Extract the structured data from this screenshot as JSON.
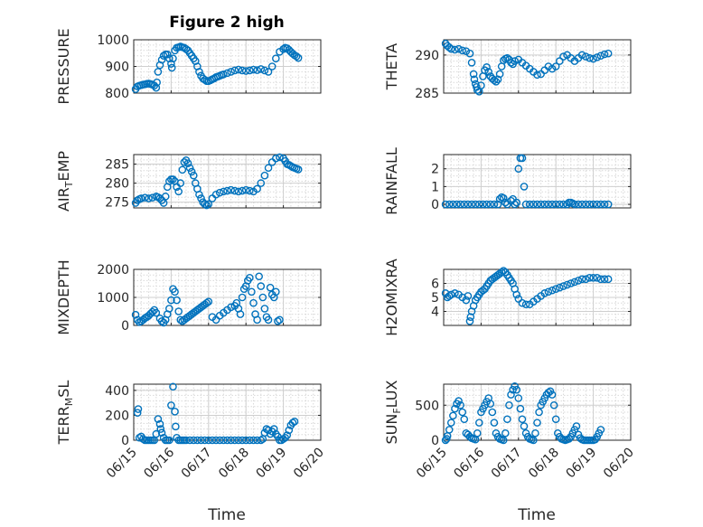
{
  "figure": {
    "title": "Figure 2 high"
  },
  "x_axis": {
    "label": "Time",
    "ticks": [
      "06/15",
      "06/16",
      "06/17",
      "06/18",
      "06/19",
      "06/20"
    ],
    "range": [
      0,
      5
    ]
  },
  "chart_data": [
    {
      "type": "scatter",
      "title": "Figure 2 high",
      "ylabel": "PRESSURE",
      "xlabel": "",
      "ylim": [
        800,
        1000
      ],
      "yticks": [
        800,
        900,
        1000
      ],
      "grid": true,
      "marker": "circle",
      "color": "#0072bd",
      "x": [
        0.05,
        0.1,
        0.15,
        0.2,
        0.25,
        0.3,
        0.35,
        0.4,
        0.45,
        0.5,
        0.55,
        0.6,
        0.62,
        0.65,
        0.7,
        0.75,
        0.8,
        0.85,
        0.9,
        0.95,
        1.0,
        1.02,
        1.05,
        1.1,
        1.15,
        1.2,
        1.25,
        1.3,
        1.35,
        1.4,
        1.45,
        1.5,
        1.55,
        1.6,
        1.65,
        1.7,
        1.75,
        1.8,
        1.85,
        1.9,
        1.95,
        2.0,
        2.05,
        2.1,
        2.15,
        2.2,
        2.25,
        2.3,
        2.35,
        2.4,
        2.5,
        2.6,
        2.7,
        2.8,
        2.9,
        3.0,
        3.1,
        3.2,
        3.3,
        3.4,
        3.5,
        3.6,
        3.7,
        3.8,
        3.9,
        4.0,
        4.05,
        4.1,
        4.15,
        4.2,
        4.25,
        4.3,
        4.35,
        4.4
      ],
      "y": [
        815,
        825,
        828,
        830,
        832,
        833,
        835,
        836,
        834,
        832,
        828,
        820,
        840,
        880,
        905,
        925,
        940,
        945,
        945,
        930,
        910,
        895,
        930,
        960,
        970,
        972,
        975,
        972,
        970,
        965,
        960,
        950,
        940,
        930,
        920,
        900,
        880,
        865,
        855,
        850,
        845,
        845,
        848,
        852,
        855,
        860,
        862,
        865,
        868,
        870,
        875,
        880,
        885,
        888,
        885,
        883,
        885,
        888,
        886,
        890,
        885,
        880,
        900,
        930,
        955,
        965,
        970,
        968,
        962,
        955,
        948,
        942,
        938,
        932
      ]
    },
    {
      "type": "scatter",
      "title": "",
      "ylabel": "THETA",
      "xlabel": "",
      "ylim": [
        285,
        292
      ],
      "yticks": [
        285,
        290
      ],
      "grid": true,
      "marker": "circle",
      "color": "#0072bd",
      "x": [
        0.05,
        0.1,
        0.15,
        0.2,
        0.3,
        0.4,
        0.5,
        0.6,
        0.7,
        0.75,
        0.8,
        0.82,
        0.85,
        0.88,
        0.9,
        0.95,
        1.0,
        1.05,
        1.1,
        1.15,
        1.2,
        1.25,
        1.3,
        1.35,
        1.4,
        1.45,
        1.5,
        1.55,
        1.6,
        1.65,
        1.7,
        1.75,
        1.8,
        1.85,
        1.9,
        2.0,
        2.1,
        2.2,
        2.3,
        2.4,
        2.5,
        2.6,
        2.7,
        2.8,
        2.9,
        3.0,
        3.1,
        3.2,
        3.3,
        3.4,
        3.5,
        3.6,
        3.7,
        3.8,
        3.9,
        4.0,
        4.1,
        4.2,
        4.3,
        4.4
      ],
      "y": [
        291.5,
        291.2,
        291.0,
        290.8,
        290.7,
        290.8,
        290.6,
        290.5,
        290.2,
        289.0,
        287.5,
        286.8,
        286.2,
        285.8,
        285.4,
        285.2,
        286.0,
        287.2,
        288.0,
        288.4,
        287.8,
        287.2,
        286.9,
        286.7,
        286.5,
        286.8,
        287.5,
        288.5,
        289.3,
        289.5,
        289.6,
        289.4,
        289.0,
        288.8,
        289.2,
        289.4,
        289.0,
        288.6,
        288.2,
        287.8,
        287.4,
        287.5,
        288.0,
        288.5,
        288.2,
        288.5,
        289.2,
        289.8,
        290.0,
        289.6,
        289.2,
        289.6,
        290.0,
        289.8,
        289.6,
        289.5,
        289.7,
        289.9,
        290.1,
        290.2
      ]
    },
    {
      "type": "scatter",
      "title": "",
      "ylabel": "AIR_TEMP",
      "xlabel": "",
      "ylim": [
        273.5,
        287.5
      ],
      "yticks": [
        275,
        280,
        285
      ],
      "grid": true,
      "marker": "circle",
      "color": "#0072bd",
      "x": [
        0.05,
        0.1,
        0.15,
        0.2,
        0.3,
        0.4,
        0.5,
        0.6,
        0.65,
        0.7,
        0.75,
        0.8,
        0.85,
        0.9,
        0.95,
        1.0,
        1.05,
        1.1,
        1.15,
        1.2,
        1.25,
        1.3,
        1.35,
        1.4,
        1.45,
        1.5,
        1.55,
        1.6,
        1.65,
        1.7,
        1.75,
        1.8,
        1.85,
        1.9,
        1.95,
        2.0,
        2.1,
        2.2,
        2.3,
        2.4,
        2.5,
        2.6,
        2.7,
        2.8,
        2.9,
        3.0,
        3.1,
        3.2,
        3.3,
        3.4,
        3.5,
        3.6,
        3.7,
        3.8,
        3.9,
        4.0,
        4.05,
        4.1,
        4.15,
        4.2,
        4.25,
        4.3,
        4.35,
        4.4
      ],
      "y": [
        274.8,
        275.5,
        275.8,
        276.0,
        276.2,
        276.0,
        276.2,
        276.5,
        276.3,
        276.0,
        275.5,
        274.8,
        276.5,
        279.0,
        280.5,
        281.0,
        281.0,
        280.5,
        279.0,
        277.8,
        280.0,
        283.5,
        285.5,
        286.0,
        285.2,
        284.0,
        283.0,
        282.0,
        280.0,
        278.5,
        277.0,
        276.0,
        275.0,
        274.5,
        274.2,
        274.5,
        276.0,
        277.0,
        277.5,
        277.8,
        278.0,
        278.2,
        278.0,
        277.8,
        278.0,
        278.2,
        278.0,
        277.8,
        278.5,
        280.0,
        282.0,
        284.0,
        285.5,
        286.5,
        286.8,
        286.5,
        285.8,
        285.0,
        284.8,
        284.5,
        284.2,
        284.0,
        283.8,
        283.6
      ]
    },
    {
      "type": "scatter",
      "title": "",
      "ylabel": "RAINFALL",
      "xlabel": "",
      "ylim": [
        -0.2,
        2.8
      ],
      "yticks": [
        0,
        1,
        2
      ],
      "grid": true,
      "marker": "circle",
      "color": "#0072bd",
      "x": [
        0.05,
        0.15,
        0.25,
        0.35,
        0.45,
        0.55,
        0.65,
        0.75,
        0.85,
        0.95,
        1.05,
        1.15,
        1.25,
        1.35,
        1.45,
        1.5,
        1.55,
        1.6,
        1.65,
        1.7,
        1.8,
        1.85,
        1.9,
        1.95,
        2.0,
        2.05,
        2.1,
        2.15,
        2.2,
        2.3,
        2.4,
        2.5,
        2.6,
        2.7,
        2.8,
        2.9,
        3.0,
        3.1,
        3.2,
        3.3,
        3.35,
        3.4,
        3.45,
        3.5,
        3.6,
        3.7,
        3.8,
        3.9,
        4.0,
        4.1,
        4.2,
        4.3,
        4.4
      ],
      "y": [
        0,
        0,
        0,
        0,
        0,
        0,
        0,
        0,
        0,
        0,
        0,
        0,
        0,
        0,
        0,
        0.3,
        0.4,
        0.35,
        0.1,
        0,
        0.2,
        0.3,
        0,
        0.1,
        2.0,
        2.6,
        2.6,
        1.0,
        0,
        0,
        0,
        0,
        0,
        0,
        0,
        0,
        0,
        0,
        0,
        0,
        0.1,
        0.1,
        0.05,
        0,
        0,
        0,
        0,
        0,
        0,
        0,
        0,
        0,
        0
      ]
    },
    {
      "type": "scatter",
      "title": "",
      "ylabel": "MIXDEPTH",
      "xlabel": "",
      "ylim": [
        0,
        2000
      ],
      "yticks": [
        0,
        1000,
        2000
      ],
      "grid": true,
      "marker": "circle",
      "color": "#0072bd",
      "x": [
        0.05,
        0.1,
        0.15,
        0.2,
        0.25,
        0.3,
        0.35,
        0.4,
        0.45,
        0.5,
        0.55,
        0.6,
        0.7,
        0.75,
        0.8,
        0.85,
        0.9,
        0.95,
        1.0,
        1.05,
        1.1,
        1.15,
        1.2,
        1.25,
        1.3,
        1.35,
        1.4,
        1.45,
        1.5,
        1.55,
        1.6,
        1.65,
        1.7,
        1.75,
        1.8,
        1.85,
        1.9,
        1.95,
        2.0,
        2.1,
        2.2,
        2.3,
        2.4,
        2.5,
        2.6,
        2.7,
        2.75,
        2.8,
        2.85,
        2.9,
        2.95,
        3.0,
        3.05,
        3.1,
        3.15,
        3.2,
        3.25,
        3.3,
        3.35,
        3.4,
        3.45,
        3.5,
        3.55,
        3.6,
        3.65,
        3.7,
        3.75,
        3.8,
        3.85,
        3.9
      ],
      "y": [
        380,
        200,
        120,
        150,
        200,
        260,
        300,
        350,
        420,
        480,
        550,
        450,
        250,
        150,
        100,
        200,
        400,
        600,
        900,
        1300,
        1200,
        900,
        500,
        200,
        150,
        200,
        250,
        300,
        350,
        400,
        450,
        500,
        550,
        600,
        650,
        700,
        750,
        800,
        850,
        300,
        200,
        350,
        450,
        550,
        650,
        700,
        800,
        600,
        400,
        1000,
        1300,
        1400,
        1600,
        1700,
        1200,
        800,
        400,
        200,
        1750,
        1400,
        1000,
        600,
        300,
        200,
        1350,
        1100,
        1000,
        1200,
        150,
        200
      ]
    },
    {
      "type": "scatter",
      "title": "",
      "ylabel": "H2OMIXRA",
      "xlabel": "",
      "ylim": [
        3,
        7
      ],
      "yticks": [
        4,
        5,
        6
      ],
      "grid": true,
      "marker": "circle",
      "color": "#0072bd",
      "x": [
        0.05,
        0.1,
        0.15,
        0.2,
        0.3,
        0.4,
        0.5,
        0.6,
        0.65,
        0.7,
        0.72,
        0.75,
        0.8,
        0.85,
        0.9,
        0.95,
        1.0,
        1.05,
        1.1,
        1.15,
        1.2,
        1.25,
        1.3,
        1.35,
        1.4,
        1.45,
        1.5,
        1.55,
        1.6,
        1.65,
        1.7,
        1.75,
        1.8,
        1.85,
        1.9,
        1.95,
        2.0,
        2.1,
        2.2,
        2.3,
        2.4,
        2.5,
        2.6,
        2.7,
        2.8,
        2.9,
        3.0,
        3.1,
        3.2,
        3.3,
        3.4,
        3.5,
        3.6,
        3.7,
        3.8,
        3.9,
        4.0,
        4.1,
        4.2,
        4.3,
        4.4
      ],
      "y": [
        5.3,
        5.0,
        5.1,
        5.2,
        5.3,
        5.2,
        5.0,
        4.8,
        5.1,
        3.3,
        3.6,
        4.0,
        4.4,
        4.8,
        5.0,
        5.2,
        5.4,
        5.5,
        5.6,
        5.8,
        6.0,
        6.2,
        6.3,
        6.4,
        6.5,
        6.6,
        6.7,
        6.8,
        6.9,
        6.8,
        6.6,
        6.4,
        6.2,
        6.0,
        5.6,
        5.2,
        4.9,
        4.6,
        4.5,
        4.5,
        4.7,
        4.9,
        5.1,
        5.3,
        5.4,
        5.5,
        5.6,
        5.7,
        5.8,
        5.9,
        6.0,
        6.1,
        6.2,
        6.3,
        6.3,
        6.4,
        6.4,
        6.4,
        6.3,
        6.3,
        6.3
      ]
    },
    {
      "type": "scatter",
      "title": "",
      "ylabel": "TERR_MSL",
      "xlabel": "",
      "ylim": [
        0,
        450
      ],
      "yticks": [
        0,
        200,
        400
      ],
      "grid": true,
      "marker": "circle",
      "color": "#0072bd",
      "x": [
        0.1,
        0.12,
        0.15,
        0.2,
        0.25,
        0.3,
        0.35,
        0.4,
        0.45,
        0.5,
        0.55,
        0.6,
        0.65,
        0.7,
        0.72,
        0.75,
        0.8,
        0.85,
        0.9,
        0.95,
        1.0,
        1.05,
        1.1,
        1.12,
        1.15,
        1.2,
        1.25,
        1.3,
        1.35,
        1.4,
        1.5,
        1.6,
        1.7,
        1.8,
        1.9,
        2.0,
        2.1,
        2.2,
        2.3,
        2.4,
        2.5,
        2.6,
        2.7,
        2.8,
        2.9,
        3.0,
        3.1,
        3.2,
        3.3,
        3.4,
        3.45,
        3.5,
        3.55,
        3.6,
        3.65,
        3.7,
        3.75,
        3.8,
        3.85,
        3.9,
        3.95,
        4.0,
        4.05,
        4.1,
        4.15,
        4.2,
        4.25,
        4.3
      ],
      "y": [
        220,
        250,
        20,
        30,
        10,
        0,
        0,
        0,
        0,
        0,
        0,
        50,
        170,
        130,
        90,
        60,
        20,
        0,
        0,
        0,
        280,
        430,
        230,
        110,
        20,
        0,
        0,
        0,
        0,
        0,
        0,
        0,
        0,
        0,
        0,
        0,
        0,
        0,
        0,
        0,
        0,
        0,
        0,
        0,
        0,
        0,
        0,
        0,
        0,
        0,
        10,
        60,
        90,
        80,
        50,
        70,
        90,
        50,
        30,
        0,
        0,
        10,
        20,
        40,
        80,
        120,
        140,
        150
      ]
    },
    {
      "type": "scatter",
      "title": "",
      "ylabel": "SUN_FLUX",
      "xlabel": "",
      "ylim": [
        0,
        800
      ],
      "yticks": [
        0,
        500
      ],
      "grid": true,
      "marker": "circle",
      "color": "#0072bd",
      "x": [
        0.05,
        0.08,
        0.1,
        0.15,
        0.2,
        0.25,
        0.3,
        0.35,
        0.4,
        0.45,
        0.5,
        0.55,
        0.6,
        0.65,
        0.7,
        0.75,
        0.8,
        0.85,
        0.9,
        0.95,
        1.0,
        1.05,
        1.1,
        1.15,
        1.2,
        1.25,
        1.3,
        1.35,
        1.4,
        1.45,
        1.5,
        1.55,
        1.6,
        1.65,
        1.7,
        1.75,
        1.8,
        1.85,
        1.9,
        1.95,
        2.0,
        2.05,
        2.1,
        2.15,
        2.2,
        2.25,
        2.3,
        2.35,
        2.4,
        2.45,
        2.5,
        2.55,
        2.6,
        2.65,
        2.7,
        2.75,
        2.8,
        2.85,
        2.9,
        2.95,
        3.0,
        3.05,
        3.1,
        3.15,
        3.2,
        3.25,
        3.3,
        3.35,
        3.4,
        3.45,
        3.5,
        3.55,
        3.6,
        3.65,
        3.7,
        3.75,
        3.8,
        3.85,
        3.9,
        3.95,
        4.0,
        4.05,
        4.1,
        4.15,
        4.2
      ],
      "y": [
        0,
        20,
        60,
        150,
        250,
        350,
        450,
        520,
        560,
        500,
        400,
        300,
        100,
        80,
        50,
        30,
        20,
        10,
        100,
        250,
        400,
        450,
        500,
        550,
        600,
        520,
        400,
        250,
        100,
        50,
        20,
        10,
        0,
        100,
        300,
        500,
        650,
        720,
        770,
        720,
        600,
        450,
        300,
        200,
        100,
        50,
        20,
        10,
        0,
        100,
        250,
        400,
        500,
        550,
        600,
        650,
        680,
        700,
        650,
        500,
        300,
        100,
        50,
        20,
        10,
        0,
        10,
        20,
        50,
        100,
        150,
        200,
        80,
        30,
        10,
        0,
        0,
        0,
        0,
        0,
        0,
        10,
        50,
        100,
        150
      ]
    }
  ]
}
